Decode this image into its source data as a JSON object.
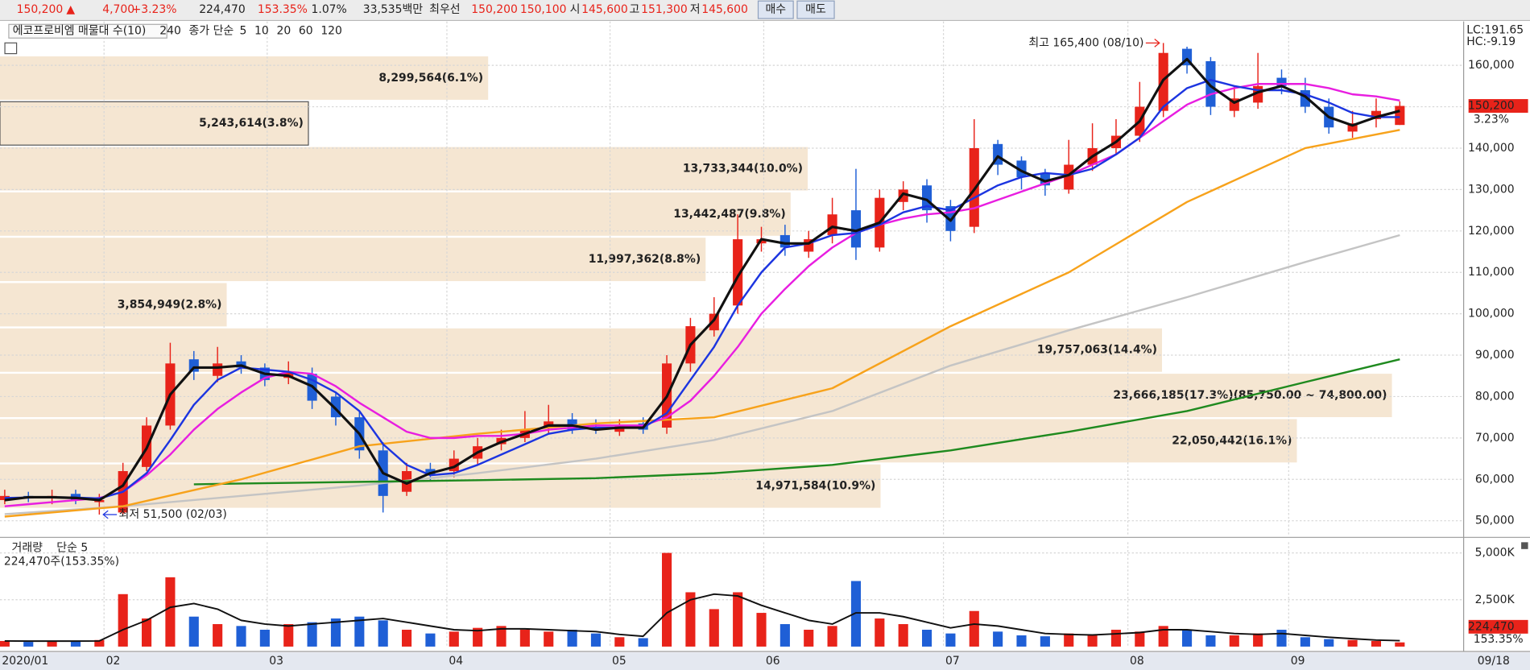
{
  "toolbar": {
    "price": "150,200",
    "arrow": "▲",
    "change": "4,700",
    "change_pct": "+3.23%",
    "volume": "224,470",
    "volume_ratio": "153.35%",
    "turnover": "1.07%",
    "amount": "33,535백만",
    "best_label": "최우선",
    "ask": "150,200",
    "bid": "150,100",
    "open_label": "시",
    "open": "145,600",
    "high_label": "고",
    "high": "151,300",
    "low_label": "저",
    "low": "145,600",
    "buy": "매수",
    "sell": "매도"
  },
  "chart_data": [
    {
      "type": "candlestick",
      "title": "에코프로비엠 매물대 수(10)",
      "legend_label": "종가 단순",
      "up_color": "#e8231a",
      "down_color": "#1f5fd6",
      "open": [
        55000,
        56000,
        55500,
        56500,
        54500,
        52000,
        63000,
        73000,
        89000,
        85000,
        88500,
        87000,
        84500,
        85500,
        80000,
        75000,
        67000,
        57000,
        62500,
        62000,
        65000,
        68500,
        70000,
        72500,
        74500,
        72500,
        71500,
        73500,
        72500,
        88000,
        96000,
        102000,
        117000,
        119000,
        115000,
        119000,
        125000,
        116000,
        127000,
        131000,
        126000,
        121000,
        141000,
        137000,
        134000,
        130000,
        136000,
        140000,
        143000,
        149000,
        164000,
        161000,
        149000,
        151000,
        157000,
        154000,
        150000,
        144000,
        147000,
        145600
      ],
      "high": [
        57500,
        57000,
        57500,
        57500,
        56500,
        64000,
        75000,
        93000,
        91000,
        92000,
        90000,
        88000,
        88500,
        87000,
        81000,
        76500,
        69000,
        64000,
        64000,
        67000,
        70000,
        72000,
        76500,
        78000,
        76000,
        74500,
        74500,
        75000,
        90000,
        99000,
        104000,
        124000,
        121000,
        121500,
        120000,
        128000,
        135000,
        130000,
        132000,
        132500,
        127500,
        147000,
        142000,
        138000,
        135000,
        142000,
        146000,
        147000,
        156000,
        165400,
        164500,
        162000,
        155000,
        163000,
        159000,
        157000,
        152000,
        149000,
        152000,
        151300
      ],
      "low": [
        54000,
        54500,
        54000,
        54000,
        51500,
        51500,
        62000,
        72000,
        84000,
        83500,
        85500,
        82500,
        83000,
        77000,
        73000,
        65000,
        52000,
        56000,
        59500,
        60500,
        63500,
        67000,
        69000,
        71000,
        71000,
        71000,
        70500,
        71000,
        71000,
        86000,
        94500,
        100000,
        115000,
        114000,
        113500,
        117000,
        113000,
        115000,
        125000,
        122000,
        117500,
        119500,
        133500,
        130000,
        128500,
        129000,
        134500,
        138500,
        141500,
        147500,
        158000,
        148000,
        147500,
        149500,
        153000,
        148500,
        143500,
        142500,
        145000,
        145600
      ],
      "close": [
        56000,
        55500,
        56000,
        55000,
        55000,
        62000,
        73000,
        88000,
        86000,
        88000,
        87000,
        84000,
        86000,
        79000,
        75000,
        67000,
        56000,
        62000,
        61000,
        65000,
        68000,
        70000,
        72000,
        74000,
        72000,
        72000,
        73000,
        72000,
        88000,
        97000,
        100000,
        118000,
        118000,
        116000,
        118000,
        124000,
        116000,
        128000,
        130000,
        125000,
        120000,
        140000,
        136000,
        133000,
        131000,
        136000,
        140000,
        143000,
        150000,
        163000,
        160000,
        150000,
        152000,
        155000,
        155000,
        150000,
        145000,
        146000,
        149000,
        150200
      ],
      "series": [
        {
          "name": "240",
          "color": "#1f8a1f",
          "x": [
            8,
            10,
            15,
            20,
            25,
            30,
            35,
            40,
            45,
            50,
            55,
            59
          ],
          "values": [
            58800,
            59000,
            59400,
            59800,
            60300,
            61500,
            63500,
            67000,
            71500,
            76500,
            83500,
            89000
          ]
        },
        {
          "name": "5",
          "color": "#111111",
          "values": [
            55000,
            55700,
            55700,
            55500,
            55000,
            58500,
            67500,
            80500,
            87000,
            87000,
            87500,
            85500,
            85000,
            82500,
            77000,
            71000,
            61500,
            59000,
            61500,
            63000,
            66500,
            69000,
            71000,
            73000,
            73000,
            72000,
            72500,
            72500,
            80000,
            92500,
            98500,
            109000,
            118000,
            117000,
            117000,
            121000,
            120000,
            122000,
            129000,
            127500,
            122500,
            130000,
            138000,
            134500,
            132000,
            133500,
            138000,
            141500,
            146500,
            156500,
            161500,
            155000,
            151000,
            153500,
            155000,
            152500,
            147500,
            145500,
            147500,
            149000
          ]
        },
        {
          "name": "10",
          "color": "#1c35e0",
          "values": [
            55500,
            55600,
            55700,
            55600,
            55400,
            57000,
            61500,
            69500,
            78000,
            84000,
            87000,
            86500,
            86000,
            84000,
            81000,
            76500,
            68500,
            63500,
            61000,
            61500,
            63500,
            66000,
            68500,
            71000,
            72000,
            72500,
            72500,
            72500,
            76000,
            84000,
            92000,
            102000,
            110000,
            116000,
            117000,
            119000,
            119500,
            121500,
            124500,
            126000,
            125000,
            128000,
            131000,
            133000,
            134000,
            133500,
            135000,
            138500,
            142500,
            150000,
            154500,
            156500,
            155000,
            154000,
            154000,
            153000,
            151000,
            148500,
            147500,
            147500
          ]
        },
        {
          "name": "20",
          "color": "#e81ee0",
          "values": [
            53500,
            54000,
            54500,
            55000,
            55500,
            57000,
            61000,
            66000,
            72000,
            77000,
            81000,
            84500,
            86000,
            85500,
            82500,
            78500,
            75000,
            71500,
            70000,
            70000,
            70500,
            70500,
            71000,
            72000,
            72500,
            73000,
            73000,
            73000,
            75000,
            79000,
            85000,
            92000,
            100000,
            106000,
            111500,
            116000,
            119500,
            121500,
            123000,
            124000,
            124500,
            125500,
            127500,
            129500,
            131500,
            133500,
            136000,
            138500,
            142500,
            146500,
            150500,
            153000,
            154500,
            155500,
            155500,
            155500,
            154500,
            153000,
            152500,
            151500
          ]
        },
        {
          "name": "60",
          "color": "#f7a21b",
          "x": [
            0,
            5,
            10,
            15,
            20,
            25,
            30,
            35,
            40,
            45,
            50,
            55,
            59
          ],
          "values": [
            51000,
            53500,
            60000,
            68000,
            71000,
            73500,
            75000,
            82000,
            97000,
            110000,
            127000,
            140000,
            144400
          ]
        },
        {
          "name": "120",
          "color": "#c4c4c4",
          "x": [
            0,
            5,
            10,
            15,
            20,
            25,
            30,
            35,
            40,
            45,
            50,
            55,
            59
          ],
          "values": [
            51600,
            53500,
            56000,
            58500,
            61500,
            65000,
            69500,
            76500,
            87500,
            96000,
            104000,
            112500,
            119000
          ]
        }
      ],
      "profile": {
        "color": "#f5e6d2",
        "text_color": "#8b6a3c",
        "bands": [
          {
            "low": 151450,
            "high": 162400,
            "volume": 8299564,
            "label": "8,299,564(6.1%)"
          },
          {
            "low": 140500,
            "high": 151450,
            "volume": 5243614,
            "label": "5,243,614(3.8%)"
          },
          {
            "low": 129550,
            "high": 140500,
            "volume": 13733344,
            "label": "13,733,344(10.0%)"
          },
          {
            "low": 118600,
            "high": 129550,
            "volume": 13442487,
            "label": "13,442,487(9.8%)"
          },
          {
            "low": 107650,
            "high": 118600,
            "volume": 11997362,
            "label": "11,997,362(8.8%)"
          },
          {
            "low": 96700,
            "high": 107650,
            "volume": 3854949,
            "label": "3,854,949(2.8%)"
          },
          {
            "low": 85750,
            "high": 96700,
            "volume": 19757063,
            "label": "19,757,063(14.4%)"
          },
          {
            "low": 74800,
            "high": 85750,
            "volume": 23666185,
            "label": "23,666,185(17.3%)(85,750.00 ~ 74,800.00)"
          },
          {
            "low": 63850,
            "high": 74800,
            "volume": 22050442,
            "label": "22,050,442(16.1%)"
          },
          {
            "low": 52900,
            "high": 63850,
            "volume": 14971584,
            "label": "14,971,584(10.9%)"
          }
        ]
      },
      "annotations": [
        {
          "text": "최고 165,400 (08/10)",
          "value": 165400,
          "color": "#e8231a"
        },
        {
          "text": "최저 51,500 (02/03)",
          "value": 51500,
          "color": "#1c35e0"
        }
      ],
      "ylim": [
        46700,
        170600
      ],
      "yticks": [
        {
          "value": 50000,
          "label": "50,000"
        },
        {
          "value": 60000,
          "label": "60,000"
        },
        {
          "value": 70000,
          "label": "70,000"
        },
        {
          "value": 80000,
          "label": "80,000"
        },
        {
          "value": 90000,
          "label": "90,000"
        },
        {
          "value": 100000,
          "label": "100,000"
        },
        {
          "value": 110000,
          "label": "110,000"
        },
        {
          "value": 120000,
          "label": "120,000"
        },
        {
          "value": 130000,
          "label": "130,000"
        },
        {
          "value": 140000,
          "label": "140,000"
        },
        {
          "value": 150000,
          "label": "150,000"
        },
        {
          "value": 160000,
          "label": "160,000"
        }
      ],
      "xlim": [
        -0.2,
        61.7
      ],
      "xticks": [
        {
          "value": -0.2,
          "label": "2020/01"
        },
        {
          "value": 4.2,
          "label": "02"
        },
        {
          "value": 11.1,
          "label": "03"
        },
        {
          "value": 18.7,
          "label": "04"
        },
        {
          "value": 25.6,
          "label": "05"
        },
        {
          "value": 32.1,
          "label": "06"
        },
        {
          "value": 39.7,
          "label": "07"
        },
        {
          "value": 47.5,
          "label": "08"
        },
        {
          "value": 54.3,
          "label": "09"
        },
        {
          "value": 62.2,
          "label": "09/18"
        }
      ],
      "lc": "LC:191.65",
      "hc": "HC:-9.19",
      "last_price": {
        "value": 150200,
        "label": "150,200"
      },
      "last_change": "3.23%",
      "grid": true
    },
    {
      "type": "bar",
      "title": "거래량",
      "legend_label": "단순 5",
      "subtitle": "224,470주(153.35%)",
      "values": [
        300000,
        250000,
        280000,
        300000,
        350000,
        2800000,
        1500000,
        3700000,
        1600000,
        1200000,
        1100000,
        900000,
        1200000,
        1300000,
        1500000,
        1600000,
        1400000,
        900000,
        700000,
        800000,
        1000000,
        1100000,
        900000,
        800000,
        900000,
        700000,
        500000,
        450000,
        5000000,
        2900000,
        2000000,
        2900000,
        1800000,
        1200000,
        900000,
        1100000,
        3500000,
        1500000,
        1200000,
        900000,
        700000,
        1900000,
        800000,
        600000,
        550000,
        700000,
        600000,
        900000,
        800000,
        1100000,
        900000,
        600000,
        600000,
        700000,
        900000,
        500000,
        400000,
        350000,
        300000,
        224470
      ],
      "series": [
        {
          "color": "#111111",
          "values": [
            300000,
            290000,
            290000,
            290000,
            300000,
            900000,
            1400000,
            2100000,
            2300000,
            2000000,
            1400000,
            1200000,
            1100000,
            1200000,
            1300000,
            1400000,
            1500000,
            1300000,
            1100000,
            900000,
            850000,
            950000,
            950000,
            900000,
            850000,
            800000,
            650000,
            550000,
            1800000,
            2500000,
            2800000,
            2700000,
            2200000,
            1800000,
            1400000,
            1200000,
            1800000,
            1800000,
            1600000,
            1300000,
            1000000,
            1200000,
            1100000,
            900000,
            700000,
            650000,
            620000,
            680000,
            750000,
            900000,
            900000,
            800000,
            700000,
            650000,
            700000,
            600000,
            500000,
            420000,
            350000,
            320000
          ]
        }
      ],
      "ylim": [
        0,
        5570000
      ],
      "yticks": [
        {
          "value": 2500000,
          "label": "2,500K"
        },
        {
          "value": 5000000,
          "label": "5,000K"
        }
      ],
      "last_volume": {
        "value": 224470,
        "label": "224,470"
      },
      "last_ratio": "153.35%",
      "grid": true
    }
  ]
}
